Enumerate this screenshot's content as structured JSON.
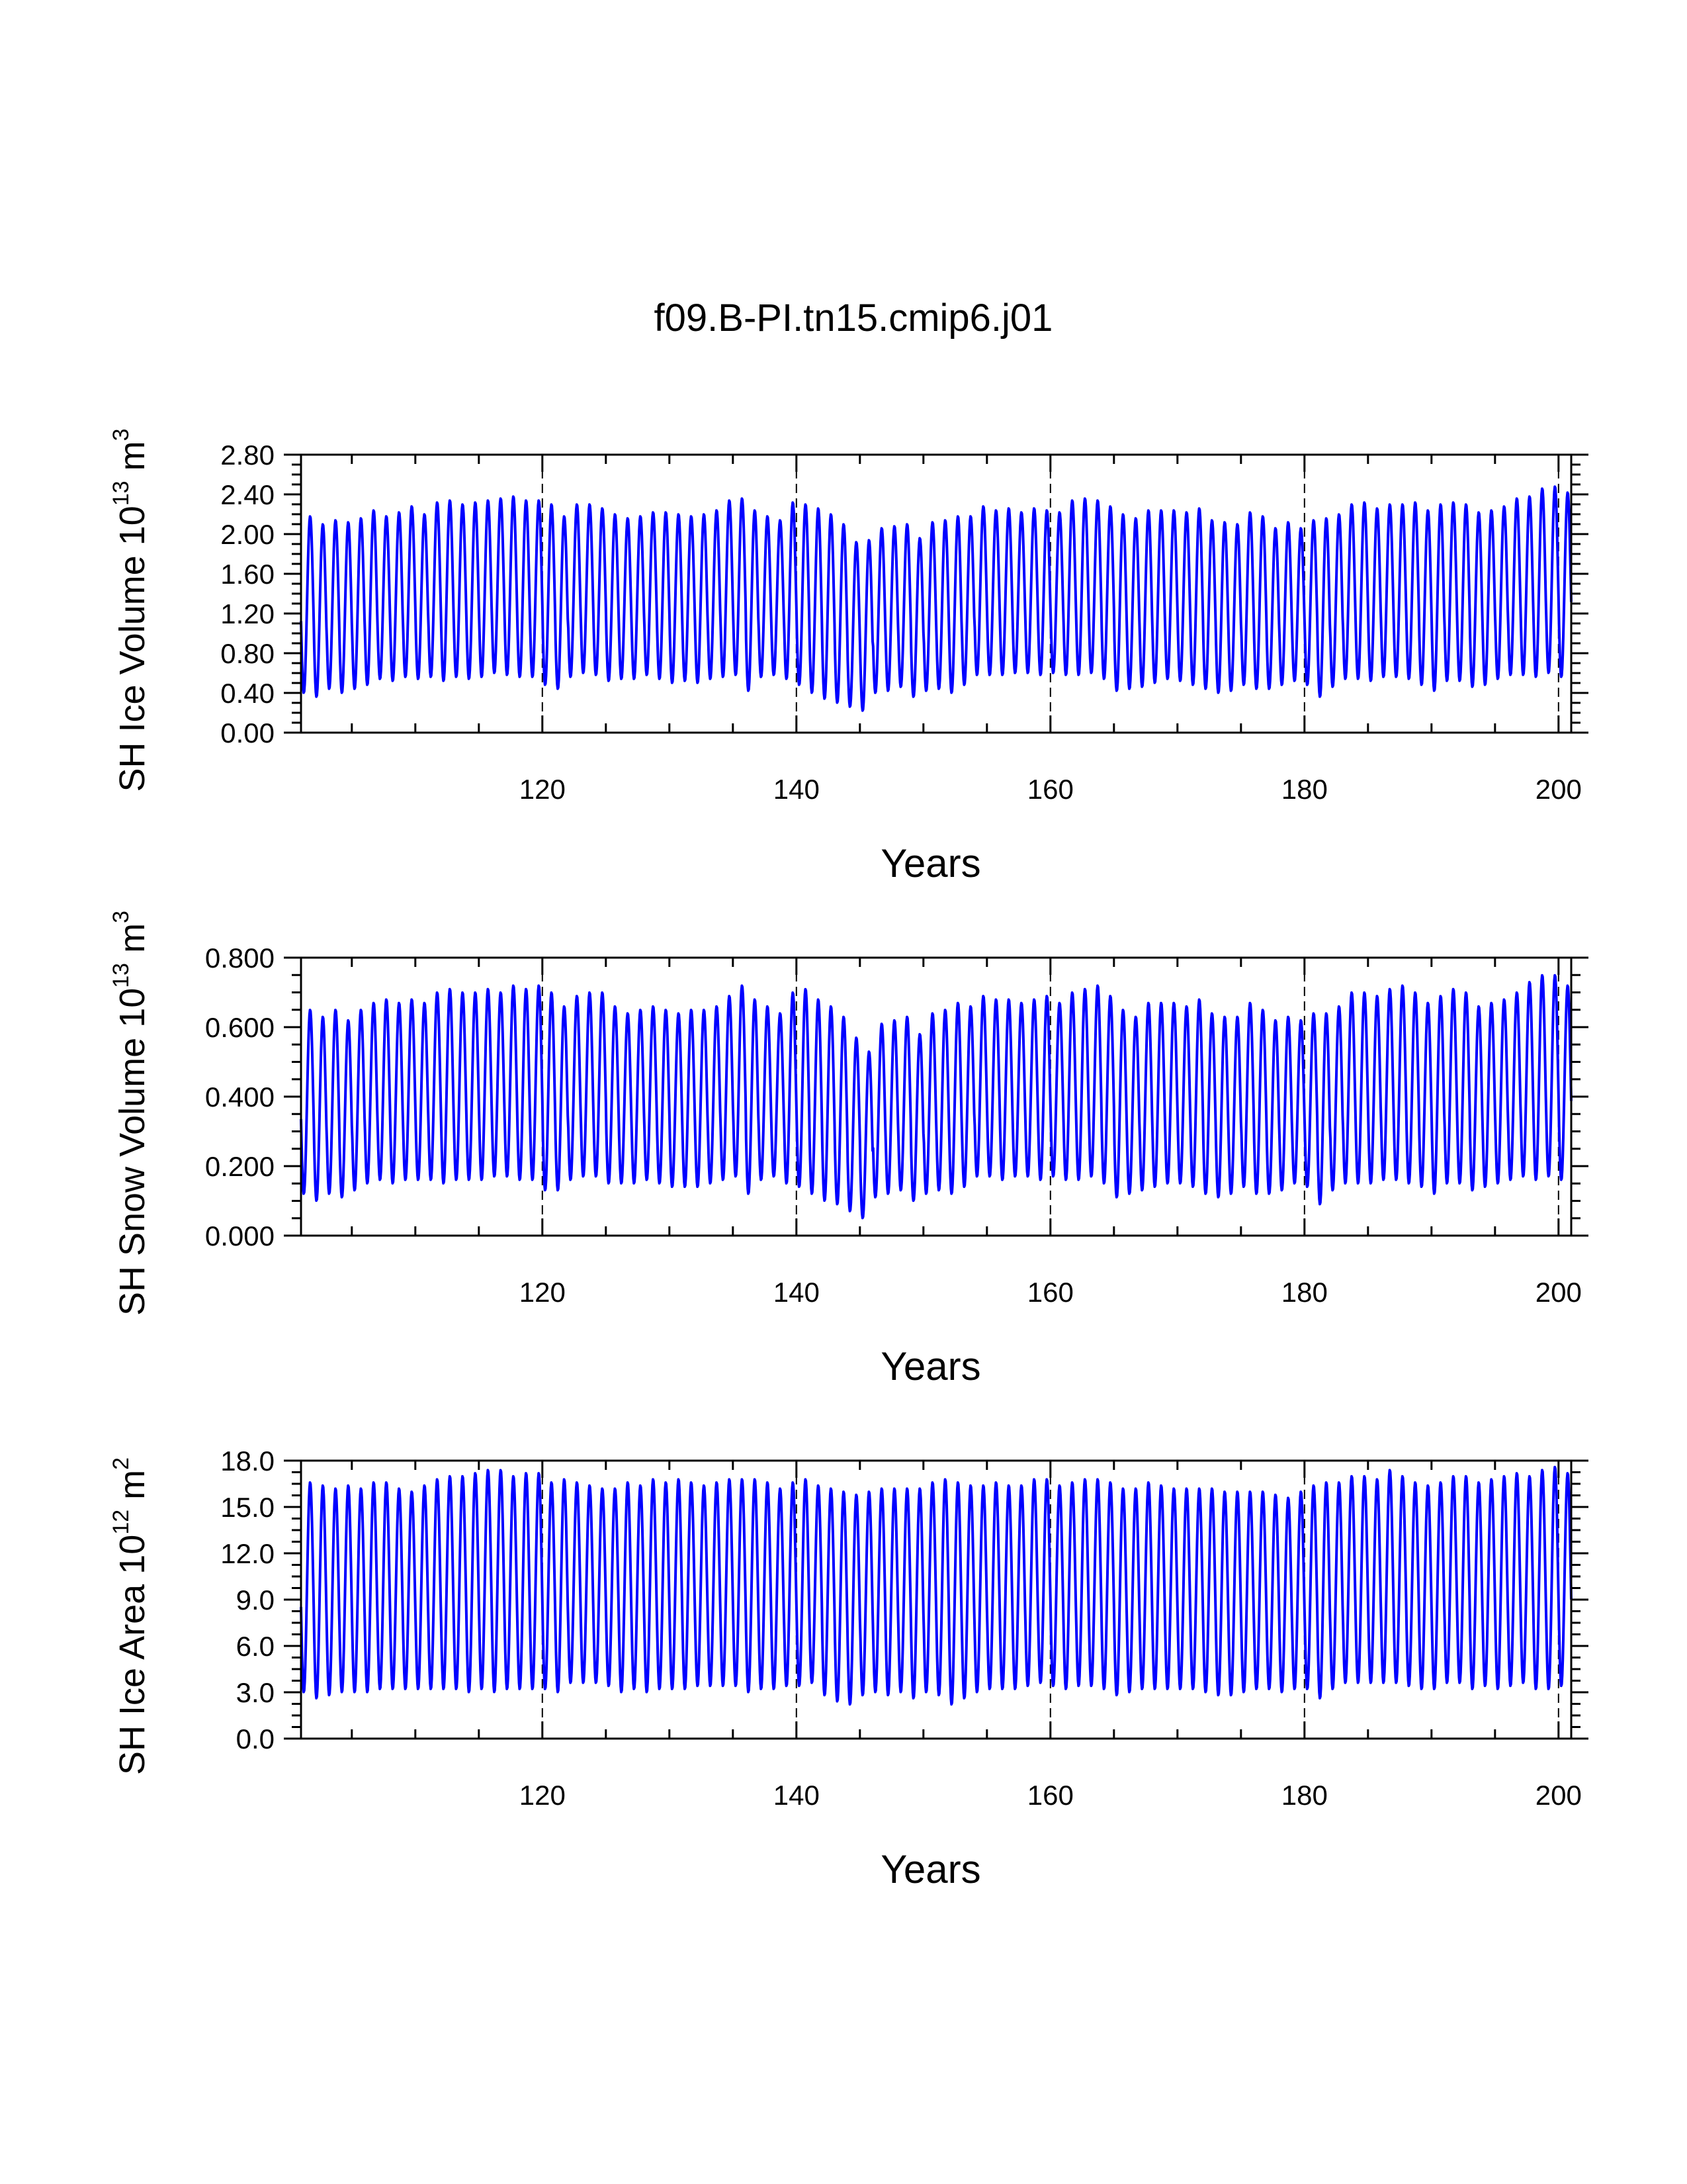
{
  "title": "f09.B-PI.tn15.cmip6.j01",
  "colors": {
    "series": "#0000ff",
    "axis": "#000000",
    "grid": "#000000"
  },
  "chart_data": [
    {
      "type": "line",
      "ylabel_main": "SH Ice Volume 10",
      "ylabel_exp": "13",
      "ylabel_unit": " m",
      "ylabel_unit_exp": "3",
      "xlabel": "Years",
      "xlim": [
        101,
        201
      ],
      "ylim": [
        0,
        2.8
      ],
      "xticks": [
        120,
        140,
        160,
        180,
        200
      ],
      "xtick_labels": [
        "120",
        "140",
        "160",
        "180",
        "200"
      ],
      "yticks": [
        0,
        0.4,
        0.8,
        1.2,
        1.6,
        2.0,
        2.4,
        2.8
      ],
      "ytick_labels": [
        "0.00",
        "0.40",
        "0.80",
        "1.20",
        "1.60",
        "2.00",
        "2.40",
        "2.80"
      ],
      "grid": "vertical dashed at x ticks",
      "series": [
        {
          "x_start": 101,
          "x_end": 201,
          "annual_max": [
            2.18,
            2.1,
            2.14,
            2.12,
            2.16,
            2.24,
            2.18,
            2.22,
            2.28,
            2.2,
            2.32,
            2.34,
            2.3,
            2.32,
            2.34,
            2.36,
            2.38,
            2.34,
            2.34,
            2.3,
            2.18,
            2.3,
            2.3,
            2.26,
            2.2,
            2.16,
            2.18,
            2.22,
            2.22,
            2.2,
            2.18,
            2.2,
            2.24,
            2.34,
            2.36,
            2.24,
            2.18,
            2.14,
            2.32,
            2.3,
            2.26,
            2.2,
            2.1,
            1.92,
            1.94,
            2.06,
            2.08,
            2.1,
            1.96,
            2.12,
            2.14,
            2.18,
            2.18,
            2.28,
            2.24,
            2.26,
            2.22,
            2.26,
            2.24,
            2.22,
            2.34,
            2.36,
            2.34,
            2.28,
            2.2,
            2.16,
            2.24,
            2.24,
            2.24,
            2.22,
            2.26,
            2.14,
            2.12,
            2.1,
            2.22,
            2.18,
            2.06,
            2.12,
            2.06,
            2.14,
            2.16,
            2.2,
            2.3,
            2.32,
            2.26,
            2.3,
            2.3,
            2.32,
            2.24,
            2.3,
            2.32,
            2.3,
            2.22,
            2.24,
            2.28,
            2.36,
            2.38,
            2.46,
            2.48,
            2.42
          ],
          "annual_min": [
            0.4,
            0.36,
            0.44,
            0.4,
            0.44,
            0.48,
            0.54,
            0.52,
            0.56,
            0.54,
            0.56,
            0.52,
            0.56,
            0.54,
            0.56,
            0.6,
            0.58,
            0.56,
            0.56,
            0.48,
            0.44,
            0.56,
            0.6,
            0.58,
            0.52,
            0.54,
            0.54,
            0.58,
            0.54,
            0.5,
            0.52,
            0.5,
            0.54,
            0.56,
            0.58,
            0.42,
            0.56,
            0.58,
            0.54,
            0.48,
            0.4,
            0.34,
            0.3,
            0.26,
            0.22,
            0.4,
            0.42,
            0.46,
            0.36,
            0.42,
            0.44,
            0.4,
            0.48,
            0.58,
            0.58,
            0.58,
            0.6,
            0.6,
            0.58,
            0.6,
            0.58,
            0.58,
            0.6,
            0.54,
            0.42,
            0.44,
            0.46,
            0.5,
            0.54,
            0.52,
            0.48,
            0.44,
            0.4,
            0.42,
            0.48,
            0.44,
            0.44,
            0.48,
            0.52,
            0.48,
            0.36,
            0.46,
            0.54,
            0.54,
            0.52,
            0.56,
            0.56,
            0.54,
            0.48,
            0.42,
            0.52,
            0.52,
            0.46,
            0.48,
            0.54,
            0.58,
            0.58,
            0.56,
            0.6,
            0.56
          ]
        }
      ]
    },
    {
      "type": "line",
      "ylabel_main": "SH Snow Volume 10",
      "ylabel_exp": "13",
      "ylabel_unit": " m",
      "ylabel_unit_exp": "3",
      "xlabel": "Years",
      "xlim": [
        101,
        201
      ],
      "ylim": [
        0,
        0.8
      ],
      "xticks": [
        120,
        140,
        160,
        180,
        200
      ],
      "xtick_labels": [
        "120",
        "140",
        "160",
        "180",
        "200"
      ],
      "yticks": [
        0,
        0.2,
        0.4,
        0.6,
        0.8
      ],
      "ytick_labels": [
        "0.000",
        "0.200",
        "0.400",
        "0.600",
        "0.800"
      ],
      "grid": "vertical dashed at x ticks",
      "series": [
        {
          "x_start": 101,
          "x_end": 201,
          "annual_max": [
            0.65,
            0.63,
            0.65,
            0.62,
            0.65,
            0.67,
            0.68,
            0.67,
            0.68,
            0.67,
            0.7,
            0.71,
            0.7,
            0.7,
            0.71,
            0.7,
            0.72,
            0.71,
            0.72,
            0.7,
            0.66,
            0.69,
            0.7,
            0.7,
            0.66,
            0.64,
            0.65,
            0.66,
            0.65,
            0.64,
            0.65,
            0.65,
            0.66,
            0.69,
            0.72,
            0.68,
            0.66,
            0.64,
            0.7,
            0.71,
            0.68,
            0.66,
            0.63,
            0.57,
            0.53,
            0.61,
            0.62,
            0.63,
            0.58,
            0.64,
            0.65,
            0.67,
            0.66,
            0.69,
            0.68,
            0.68,
            0.67,
            0.68,
            0.69,
            0.67,
            0.7,
            0.71,
            0.72,
            0.69,
            0.65,
            0.63,
            0.67,
            0.67,
            0.67,
            0.66,
            0.68,
            0.64,
            0.63,
            0.63,
            0.67,
            0.65,
            0.62,
            0.63,
            0.62,
            0.64,
            0.64,
            0.66,
            0.7,
            0.7,
            0.69,
            0.71,
            0.72,
            0.7,
            0.67,
            0.69,
            0.71,
            0.7,
            0.66,
            0.67,
            0.68,
            0.7,
            0.73,
            0.75,
            0.75,
            0.72
          ],
          "annual_min": [
            0.12,
            0.1,
            0.12,
            0.11,
            0.13,
            0.15,
            0.16,
            0.15,
            0.16,
            0.16,
            0.16,
            0.15,
            0.16,
            0.16,
            0.16,
            0.17,
            0.17,
            0.16,
            0.16,
            0.13,
            0.13,
            0.16,
            0.17,
            0.17,
            0.15,
            0.15,
            0.15,
            0.16,
            0.15,
            0.14,
            0.14,
            0.14,
            0.15,
            0.16,
            0.17,
            0.12,
            0.16,
            0.17,
            0.15,
            0.14,
            0.12,
            0.1,
            0.09,
            0.07,
            0.05,
            0.11,
            0.12,
            0.13,
            0.1,
            0.12,
            0.13,
            0.12,
            0.14,
            0.17,
            0.17,
            0.16,
            0.17,
            0.17,
            0.16,
            0.17,
            0.16,
            0.16,
            0.17,
            0.15,
            0.11,
            0.12,
            0.13,
            0.14,
            0.15,
            0.15,
            0.14,
            0.12,
            0.11,
            0.12,
            0.14,
            0.12,
            0.12,
            0.13,
            0.15,
            0.14,
            0.09,
            0.13,
            0.15,
            0.15,
            0.15,
            0.16,
            0.16,
            0.15,
            0.14,
            0.12,
            0.15,
            0.15,
            0.13,
            0.14,
            0.15,
            0.16,
            0.17,
            0.16,
            0.17,
            0.16
          ]
        }
      ]
    },
    {
      "type": "line",
      "ylabel_main": "SH Ice Area 10",
      "ylabel_exp": "12",
      "ylabel_unit": " m",
      "ylabel_unit_exp": "2",
      "xlabel": "Years",
      "xlim": [
        101,
        201
      ],
      "ylim": [
        0,
        18
      ],
      "xticks": [
        120,
        140,
        160,
        180,
        200
      ],
      "xtick_labels": [
        "120",
        "140",
        "160",
        "180",
        "200"
      ],
      "yticks": [
        0,
        3,
        6,
        9,
        12,
        15,
        18
      ],
      "ytick_labels": [
        "0.0",
        "3.0",
        "6.0",
        "9.0",
        "12.0",
        "15.0",
        "18.0"
      ],
      "grid": "vertical dashed at x ticks",
      "series": [
        {
          "x_start": 101,
          "x_end": 201,
          "annual_max": [
            16.6,
            16.4,
            16.2,
            16.4,
            16.2,
            16.6,
            16.6,
            16.2,
            16.0,
            16.4,
            16.8,
            17.0,
            17.0,
            17.2,
            17.4,
            17.4,
            17.0,
            17.2,
            17.2,
            16.6,
            16.8,
            16.6,
            16.4,
            16.2,
            16.2,
            16.6,
            16.4,
            16.8,
            16.6,
            16.8,
            16.6,
            16.4,
            16.6,
            16.8,
            16.8,
            16.8,
            16.6,
            16.2,
            16.6,
            16.8,
            16.4,
            16.2,
            16.0,
            15.8,
            16.0,
            16.2,
            16.2,
            16.2,
            16.2,
            16.6,
            16.8,
            16.6,
            16.4,
            16.4,
            16.6,
            16.4,
            16.4,
            16.8,
            16.8,
            16.4,
            16.6,
            16.8,
            16.8,
            16.6,
            16.2,
            16.2,
            16.6,
            16.4,
            16.2,
            16.2,
            16.2,
            16.2,
            16.0,
            16.0,
            16.0,
            16.0,
            15.8,
            15.6,
            16.0,
            16.4,
            16.6,
            16.6,
            17.0,
            17.0,
            16.8,
            17.4,
            17.0,
            16.6,
            16.4,
            16.6,
            17.0,
            17.0,
            16.6,
            16.8,
            17.0,
            17.2,
            17.0,
            17.4,
            17.6,
            17.2
          ],
          "annual_min": [
            3.0,
            2.6,
            2.8,
            3.0,
            3.0,
            3.0,
            3.2,
            3.2,
            3.2,
            3.2,
            3.2,
            3.2,
            3.2,
            3.0,
            3.2,
            3.0,
            3.2,
            3.2,
            3.2,
            3.2,
            3.0,
            3.6,
            3.6,
            3.6,
            3.4,
            3.0,
            3.2,
            3.0,
            3.2,
            3.2,
            3.2,
            3.4,
            3.4,
            3.4,
            3.4,
            3.0,
            3.2,
            3.2,
            3.4,
            3.4,
            3.6,
            2.8,
            2.4,
            2.2,
            2.8,
            3.0,
            2.8,
            3.0,
            2.6,
            3.0,
            2.8,
            2.2,
            2.6,
            3.0,
            3.2,
            3.2,
            3.2,
            3.4,
            3.6,
            3.4,
            3.2,
            3.4,
            3.4,
            3.2,
            2.8,
            3.0,
            3.2,
            3.2,
            3.2,
            3.2,
            3.2,
            3.0,
            2.8,
            2.8,
            3.0,
            3.2,
            3.2,
            3.0,
            3.2,
            3.2,
            2.6,
            3.2,
            3.6,
            3.6,
            3.6,
            3.6,
            3.6,
            3.4,
            3.2,
            3.2,
            3.6,
            3.6,
            3.2,
            3.4,
            3.2,
            3.4,
            3.6,
            3.2,
            3.2,
            3.4
          ]
        }
      ]
    }
  ]
}
